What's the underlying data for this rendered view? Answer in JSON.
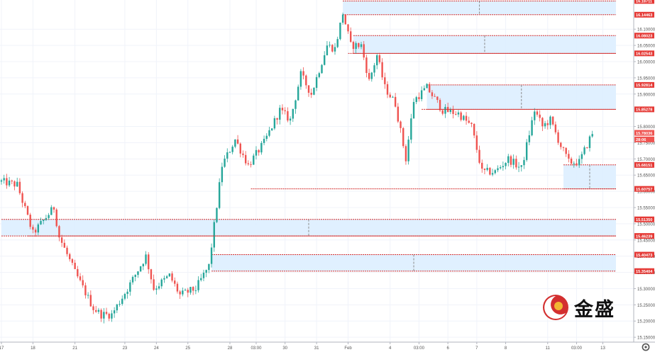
{
  "chart_data": {
    "type": "candlestick",
    "title": "",
    "colors": {
      "up": "#26a69a",
      "down": "#ef5350",
      "zone_fill": "#ddeeff",
      "zone_edge": "#d32f2f",
      "axis_text": "#555555"
    },
    "ylim": [
      15.135,
      16.19
    ],
    "y_ticks": [
      "16.10000",
      "16.05000",
      "16.00000",
      "15.95000",
      "15.90000",
      "15.80000",
      "15.75000",
      "15.70000",
      "15.65000",
      "15.60000",
      "15.55000",
      "15.50000",
      "15.45000",
      "15.40000",
      "15.35000",
      "15.30000",
      "15.25000",
      "15.20000",
      "15.15000"
    ],
    "x_ticks": [
      {
        "label": "17",
        "i": 0
      },
      {
        "label": "18",
        "i": 12
      },
      {
        "label": "21",
        "i": 28
      },
      {
        "label": "23",
        "i": 47
      },
      {
        "label": "24",
        "i": 59
      },
      {
        "label": "25",
        "i": 71
      },
      {
        "label": "28",
        "i": 87
      },
      {
        "label": "03:00",
        "i": 97
      },
      {
        "label": "30",
        "i": 108
      },
      {
        "label": "31",
        "i": 120
      },
      {
        "label": "Feb",
        "i": 132
      },
      {
        "label": "4",
        "i": 148
      },
      {
        "label": "03:00",
        "i": 159
      },
      {
        "label": "6",
        "i": 170
      },
      {
        "label": "7",
        "i": 181
      },
      {
        "label": "8",
        "i": 192
      },
      {
        "label": "11",
        "i": 208
      },
      {
        "label": "03:00",
        "i": 219
      },
      {
        "label": "13",
        "i": 229
      }
    ],
    "price_labels": [
      {
        "text": "16.18711",
        "value": 16.18711,
        "kind": "level"
      },
      {
        "text": "16.14463",
        "value": 16.14463,
        "kind": "level"
      },
      {
        "text": "16.08023",
        "value": 16.08023,
        "kind": "level"
      },
      {
        "text": "16.02543",
        "value": 16.02543,
        "kind": "level"
      },
      {
        "text": "15.92814",
        "value": 15.92814,
        "kind": "level"
      },
      {
        "text": "15.85278",
        "value": 15.85278,
        "kind": "level"
      },
      {
        "text": "15.78036",
        "value": 15.78036,
        "kind": "current"
      },
      {
        "text": "28:06",
        "value": 15.76,
        "kind": "timer"
      },
      {
        "text": "15.68151",
        "value": 15.68151,
        "kind": "level"
      },
      {
        "text": "15.60757",
        "value": 15.60757,
        "kind": "level"
      },
      {
        "text": "15.51350",
        "value": 15.5135,
        "kind": "level"
      },
      {
        "text": "15.46239",
        "value": 15.46239,
        "kind": "level"
      },
      {
        "text": "15.40473",
        "value": 15.40473,
        "kind": "level"
      },
      {
        "text": "15.35404",
        "value": 15.35404,
        "kind": "level"
      }
    ],
    "zones": [
      {
        "start_i": 130,
        "end_i": 234,
        "top": 16.18711,
        "bottom": 16.14463
      },
      {
        "start_i": 134,
        "end_i": 234,
        "top": 16.08023,
        "bottom": 16.02543
      },
      {
        "start_i": 162,
        "end_i": 234,
        "top": 15.92814,
        "bottom": 15.85278
      },
      {
        "start_i": 214,
        "end_i": 234,
        "top": 15.68151,
        "bottom": 15.60757
      },
      {
        "start_i": 0,
        "end_i": 234,
        "top": 15.5135,
        "bottom": 15.46239
      },
      {
        "start_i": 80,
        "end_i": 234,
        "top": 15.40473,
        "bottom": 15.35404
      }
    ],
    "lines": [
      {
        "start_i": 95,
        "end_i": 234,
        "value": 15.60757
      },
      {
        "start_i": 10,
        "end_i": 234,
        "value": 15.46239
      },
      {
        "start_i": 132,
        "end_i": 234,
        "value": 16.02543
      },
      {
        "start_i": 160,
        "end_i": 234,
        "value": 15.85278
      }
    ],
    "anchors": [
      {
        "i": 0,
        "v": 15.63
      },
      {
        "i": 6,
        "v": 15.62
      },
      {
        "i": 12,
        "v": 15.47
      },
      {
        "i": 20,
        "v": 15.55
      },
      {
        "i": 22,
        "v": 15.46
      },
      {
        "i": 28,
        "v": 15.35
      },
      {
        "i": 35,
        "v": 15.24
      },
      {
        "i": 38,
        "v": 15.22
      },
      {
        "i": 42,
        "v": 15.22
      },
      {
        "i": 48,
        "v": 15.3
      },
      {
        "i": 55,
        "v": 15.4
      },
      {
        "i": 58,
        "v": 15.3
      },
      {
        "i": 64,
        "v": 15.34
      },
      {
        "i": 68,
        "v": 15.28
      },
      {
        "i": 74,
        "v": 15.3
      },
      {
        "i": 79,
        "v": 15.37
      },
      {
        "i": 84,
        "v": 15.68
      },
      {
        "i": 89,
        "v": 15.76
      },
      {
        "i": 94,
        "v": 15.68
      },
      {
        "i": 100,
        "v": 15.75
      },
      {
        "i": 106,
        "v": 15.85
      },
      {
        "i": 110,
        "v": 15.82
      },
      {
        "i": 114,
        "v": 15.96
      },
      {
        "i": 118,
        "v": 15.9
      },
      {
        "i": 124,
        "v": 16.05
      },
      {
        "i": 127,
        "v": 16.04
      },
      {
        "i": 130,
        "v": 16.15
      },
      {
        "i": 133,
        "v": 16.05
      },
      {
        "i": 137,
        "v": 16.05
      },
      {
        "i": 140,
        "v": 15.94
      },
      {
        "i": 143,
        "v": 16.02
      },
      {
        "i": 146,
        "v": 15.92
      },
      {
        "i": 150,
        "v": 15.87
      },
      {
        "i": 154,
        "v": 15.7
      },
      {
        "i": 157,
        "v": 15.88
      },
      {
        "i": 162,
        "v": 15.92
      },
      {
        "i": 168,
        "v": 15.85
      },
      {
        "i": 174,
        "v": 15.84
      },
      {
        "i": 179,
        "v": 15.8
      },
      {
        "i": 183,
        "v": 15.66
      },
      {
        "i": 188,
        "v": 15.66
      },
      {
        "i": 193,
        "v": 15.7
      },
      {
        "i": 198,
        "v": 15.67
      },
      {
        "i": 203,
        "v": 15.85
      },
      {
        "i": 206,
        "v": 15.8
      },
      {
        "i": 209,
        "v": 15.82
      },
      {
        "i": 213,
        "v": 15.74
      },
      {
        "i": 216,
        "v": 15.69
      },
      {
        "i": 220,
        "v": 15.69
      },
      {
        "i": 225,
        "v": 15.78
      }
    ]
  },
  "branding": {
    "watermark": "金盛"
  }
}
